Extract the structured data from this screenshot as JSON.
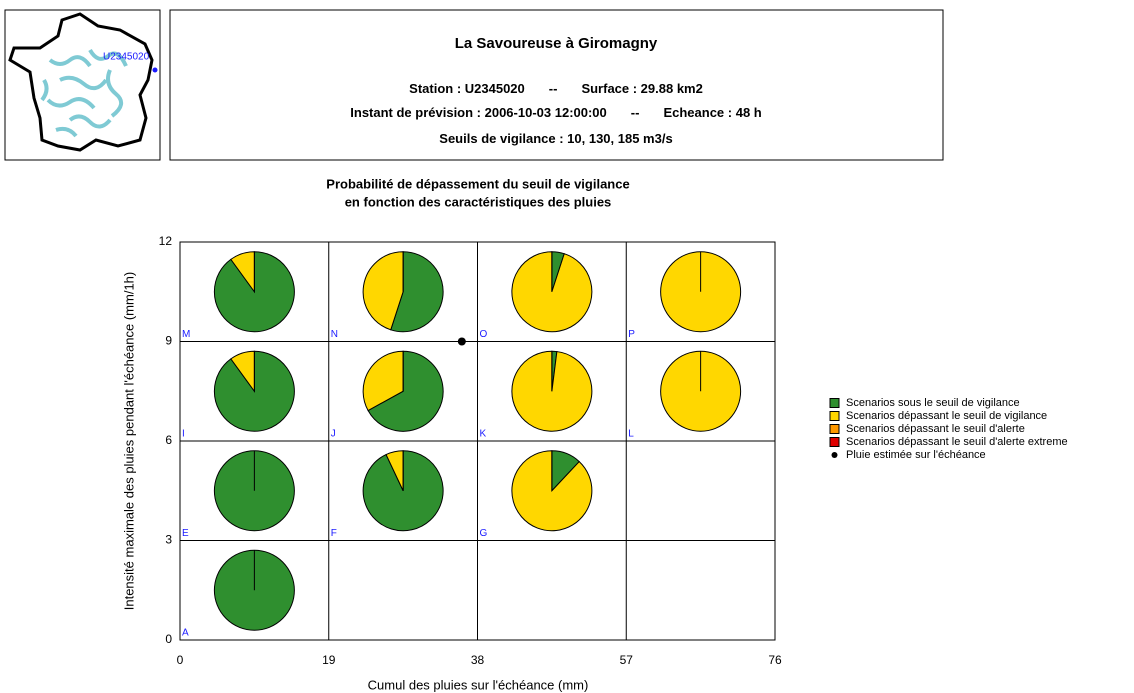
{
  "header": {
    "map_label": "U2345020",
    "title": "La Savoureuse à Giromagny",
    "lines": [
      [
        "Station : U2345020",
        "--",
        "Surface : 29.88 km2"
      ],
      [
        "Instant de prévision : 2006-10-03 12:00:00",
        "--",
        "Echeance : 48 h"
      ],
      [
        "Seuils de vigilance : 10, 130, 185 m3/s"
      ]
    ]
  },
  "chart_data": {
    "type": "pie_grid",
    "title": [
      "Probabilité de dépassement du seuil de vigilance",
      "en fonction des caractéristiques des pluies"
    ],
    "xlabel": "Cumul des pluies sur l'échéance (mm)",
    "ylabel": "Intensité maximale des pluies pendant l'échéance (mm/1h)",
    "xlim": [
      0,
      76
    ],
    "ylim": [
      0,
      12
    ],
    "xticks": [
      0,
      19,
      38,
      57,
      76
    ],
    "yticks": [
      0,
      3,
      6,
      9,
      12
    ],
    "grid": true,
    "legend": "right",
    "series": [
      {
        "name": "Scenarios sous le seuil de vigilance",
        "color": "#2f8f2f"
      },
      {
        "name": "Scenarios dépassant le seuil de vigilance",
        "color": "#ffd700"
      },
      {
        "name": "Scenarios dépassant le seuil d'alerte",
        "color": "#ff9900"
      },
      {
        "name": "Scenarios dépassant le seuil d'alerte extreme",
        "color": "#e00000"
      }
    ],
    "cells": [
      {
        "label": "M",
        "x": 0,
        "y": 9,
        "values": [
          90,
          10,
          0,
          0
        ]
      },
      {
        "label": "N",
        "x": 19,
        "y": 9,
        "values": [
          55,
          45,
          0,
          0
        ]
      },
      {
        "label": "O",
        "x": 38,
        "y": 9,
        "values": [
          5,
          95,
          0,
          0
        ]
      },
      {
        "label": "P",
        "x": 57,
        "y": 9,
        "values": [
          0,
          100,
          0,
          0
        ]
      },
      {
        "label": "I",
        "x": 0,
        "y": 6,
        "values": [
          90,
          10,
          0,
          0
        ]
      },
      {
        "label": "J",
        "x": 19,
        "y": 6,
        "values": [
          67,
          33,
          0,
          0
        ]
      },
      {
        "label": "K",
        "x": 38,
        "y": 6,
        "values": [
          2,
          98,
          0,
          0
        ]
      },
      {
        "label": "L",
        "x": 57,
        "y": 6,
        "values": [
          0,
          100,
          0,
          0
        ]
      },
      {
        "label": "E",
        "x": 0,
        "y": 3,
        "values": [
          100,
          0,
          0,
          0
        ]
      },
      {
        "label": "F",
        "x": 19,
        "y": 3,
        "values": [
          93,
          7,
          0,
          0
        ]
      },
      {
        "label": "G",
        "x": 38,
        "y": 3,
        "values": [
          12,
          88,
          0,
          0
        ]
      },
      {
        "label": "A",
        "x": 0,
        "y": 0,
        "values": [
          100,
          0,
          0,
          0
        ]
      }
    ],
    "point": {
      "name": "Pluie estimée sur l'échéance",
      "x": 36,
      "y": 9,
      "color": "#000000"
    }
  }
}
